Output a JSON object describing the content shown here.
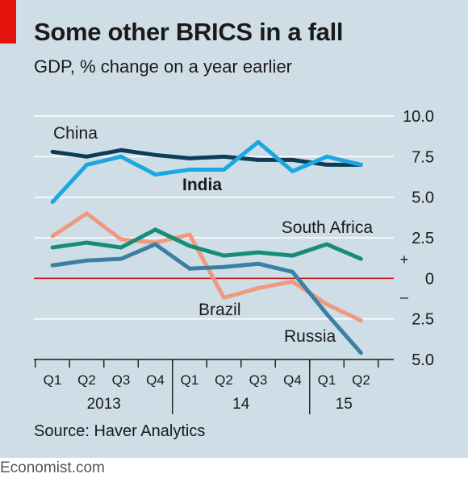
{
  "header": {
    "title": "Some other BRICS in a fall",
    "subtitle": "GDP, % change on a year earlier"
  },
  "source": "Source: Haver Analytics",
  "footer": "Economist.com",
  "colors": {
    "panel_bg": "#cfdde6",
    "brand_red": "#e3120b",
    "zero_line": "#c21b1b",
    "gridline": "#ffffff"
  },
  "chart_data": {
    "type": "line",
    "title": "Some other BRICS in a fall",
    "subtitle": "GDP, % change on a year earlier",
    "categories": [
      "Q1",
      "Q2",
      "Q3",
      "Q4",
      "Q1",
      "Q2",
      "Q3",
      "Q4",
      "Q1",
      "Q2"
    ],
    "years": [
      {
        "label": "2013",
        "start": 0,
        "end": 3
      },
      {
        "label": "14",
        "start": 4,
        "end": 7
      },
      {
        "label": "15",
        "start": 8,
        "end": 9
      }
    ],
    "ylim": [
      -5,
      10
    ],
    "yticks": [
      {
        "value": 10,
        "label": "10.0"
      },
      {
        "value": 7.5,
        "label": "7.5"
      },
      {
        "value": 5,
        "label": "5.0"
      },
      {
        "value": 2.5,
        "label": "2.5"
      },
      {
        "value": 0,
        "label": "0"
      },
      {
        "value": -2.5,
        "label": "2.5"
      },
      {
        "value": -5,
        "label": "5.0"
      }
    ],
    "sign_labels": {
      "plus": "+",
      "minus": "–"
    },
    "grid": true,
    "series": [
      {
        "name": "China",
        "color": "#0d3d56",
        "bold_label": false,
        "values": [
          7.8,
          7.5,
          7.9,
          7.6,
          7.4,
          7.5,
          7.3,
          7.3,
          7.0,
          7.0
        ]
      },
      {
        "name": "India",
        "color": "#1ba8e0",
        "bold_label": true,
        "values": [
          4.7,
          7.0,
          7.5,
          6.4,
          6.7,
          6.7,
          8.4,
          6.6,
          7.5,
          7.0
        ]
      },
      {
        "name": "South Africa",
        "color": "#178c7a",
        "bold_label": false,
        "values": [
          1.9,
          2.2,
          1.9,
          3.0,
          2.0,
          1.4,
          1.6,
          1.4,
          2.1,
          1.2
        ]
      },
      {
        "name": "Brazil",
        "color": "#ef9a7e",
        "bold_label": false,
        "values": [
          2.6,
          4.0,
          2.4,
          2.2,
          2.7,
          -1.2,
          -0.6,
          -0.2,
          -1.6,
          -2.6
        ]
      },
      {
        "name": "Russia",
        "color": "#3c7fa3",
        "bold_label": false,
        "values": [
          0.8,
          1.1,
          1.2,
          2.1,
          0.6,
          0.7,
          0.9,
          0.4,
          -2.2,
          -4.6
        ]
      }
    ]
  }
}
